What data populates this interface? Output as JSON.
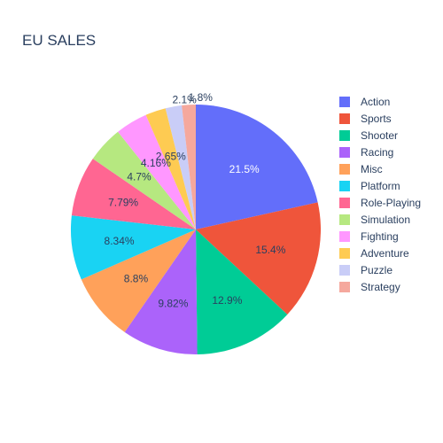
{
  "chart_data": {
    "type": "pie",
    "title": "EU SALES",
    "categories": [
      "Action",
      "Sports",
      "Shooter",
      "Racing",
      "Misc",
      "Platform",
      "Role-Playing",
      "Simulation",
      "Fighting",
      "Adventure",
      "Puzzle",
      "Strategy"
    ],
    "values": [
      21.5,
      15.4,
      12.9,
      9.82,
      8.8,
      8.34,
      7.79,
      4.7,
      4.16,
      2.65,
      2.1,
      1.8
    ],
    "labels": [
      "21.5%",
      "15.4%",
      "12.9%",
      "9.82%",
      "8.8%",
      "8.34%",
      "7.79%",
      "4.7%",
      "4.16%",
      "2.65%",
      "2.1%",
      "1.8%"
    ],
    "colors": [
      "#636efa",
      "#EF553B",
      "#00cc96",
      "#ab63fa",
      "#FFA15A",
      "#19d3f3",
      "#FF6692",
      "#B6E880",
      "#FF97FF",
      "#FECB52",
      "#c9cdf7",
      "#f5a89d"
    ],
    "legend_position": "right",
    "direction": "clockwise",
    "start": "top"
  }
}
